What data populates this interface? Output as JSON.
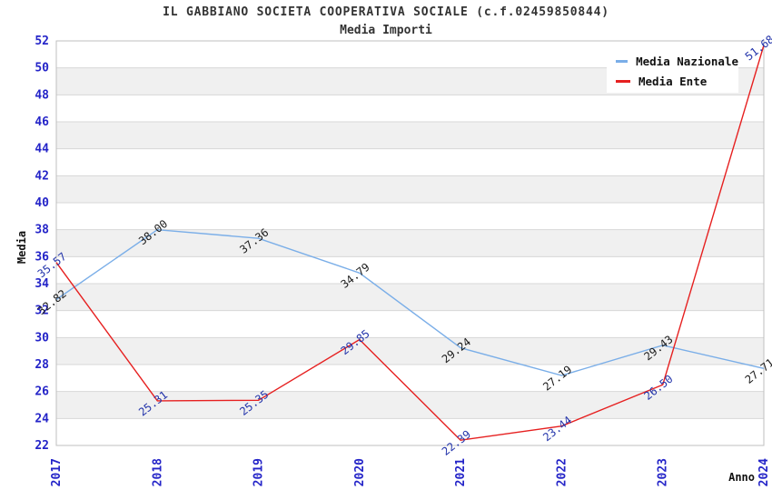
{
  "chart_data": {
    "type": "line",
    "title": "IL GABBIANO SOCIETA COOPERATIVA SOCIALE (c.f.02459850844)",
    "subtitle": "Media Importi",
    "xlabel": "Anno",
    "ylabel": "Media",
    "categories": [
      "2017",
      "2018",
      "2019",
      "2020",
      "2021",
      "2022",
      "2023",
      "2024"
    ],
    "series": [
      {
        "name": "Media Nazionale",
        "color": "#7aaee8",
        "label_color": "#1a1a1a",
        "values": [
          32.82,
          38.0,
          37.36,
          34.79,
          29.24,
          27.19,
          29.43,
          27.71
        ]
      },
      {
        "name": "Media Ente",
        "color": "#e62020",
        "label_color": "#2233aa",
        "values": [
          35.57,
          25.31,
          25.35,
          29.85,
          22.39,
          23.44,
          26.5,
          51.68
        ]
      }
    ],
    "ylim": [
      22,
      52
    ],
    "yticks": [
      22,
      24,
      26,
      28,
      30,
      32,
      34,
      36,
      38,
      40,
      42,
      44,
      46,
      48,
      50,
      52
    ],
    "grid": true,
    "band_colors": [
      "#ffffff",
      "#f0f0f0"
    ],
    "gridline_color": "#d7d7d7",
    "border_color": "#bfbfbf",
    "tick_color": "#2424c8",
    "legend_position": "top-right"
  }
}
